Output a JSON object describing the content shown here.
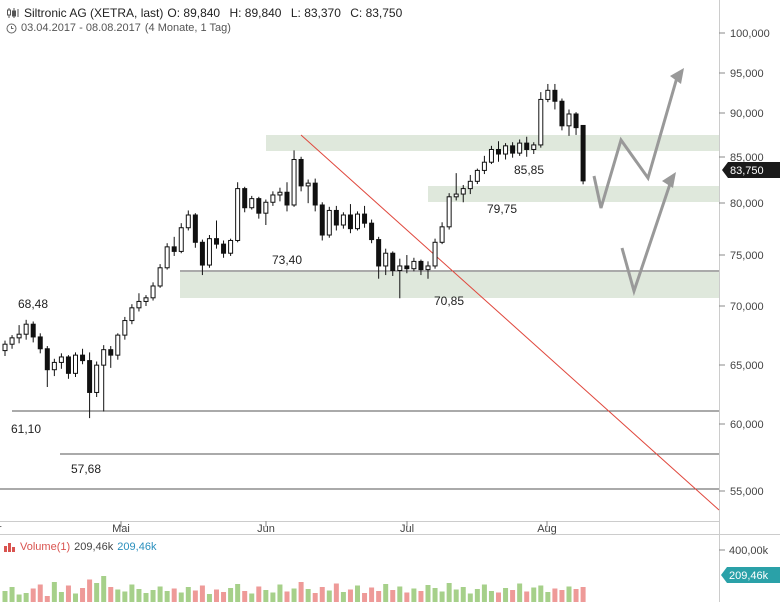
{
  "header": {
    "title": "Siltronic AG (XETRA, last)",
    "ohlc": {
      "open_label": "O:",
      "open": "89,840",
      "high_label": "H:",
      "high": "89,840",
      "low_label": "L:",
      "low": "83,370",
      "close_label": "C:",
      "close": "83,750"
    },
    "date_range": "03.04.2017 - 08.08.2017",
    "period": "(4 Monate, 1 Tag)"
  },
  "price_badge": "83,750",
  "volume": {
    "label": "Volume(1)",
    "value1": "209,46k",
    "value2": "209,46k",
    "badge": "209,46k",
    "axis_label": "400,00k"
  },
  "chart_data": {
    "type": "candlestick",
    "y_axis": {
      "ticks": [
        "100,000",
        "95,000",
        "90,000",
        "85,000",
        "80,000",
        "75,000",
        "70,000",
        "65,000",
        "60,000",
        "55,000"
      ],
      "ylim": [
        52.5,
        102
      ]
    },
    "x_axis": {
      "ticks": [
        "Apr",
        "Mai",
        "Jun",
        "Jul",
        "Aug"
      ]
    },
    "annotations": [
      "68,48",
      "61,10",
      "57,68",
      "73,40",
      "70,85",
      "79,75",
      "85,85"
    ],
    "candles": [
      [
        65.1,
        66.2,
        64.5,
        65.8
      ],
      [
        65.8,
        66.8,
        65.3,
        66.5
      ],
      [
        66.5,
        67.9,
        65.9,
        66.9
      ],
      [
        66.9,
        68.48,
        66.3,
        68.0
      ],
      [
        68.0,
        68.3,
        66.0,
        66.6
      ],
      [
        66.6,
        67.0,
        64.8,
        65.3
      ],
      [
        65.3,
        65.6,
        61.1,
        63.0
      ],
      [
        63.0,
        64.2,
        62.3,
        63.8
      ],
      [
        63.8,
        64.8,
        63.1,
        64.4
      ],
      [
        64.4,
        64.6,
        62.0,
        62.6
      ],
      [
        62.6,
        64.9,
        62.2,
        64.6
      ],
      [
        64.6,
        65.3,
        63.6,
        64.0
      ],
      [
        64.0,
        64.9,
        57.68,
        60.5
      ],
      [
        60.5,
        63.9,
        60.0,
        63.5
      ],
      [
        63.5,
        65.7,
        58.4,
        65.2
      ],
      [
        65.2,
        65.6,
        63.2,
        64.6
      ],
      [
        64.6,
        67.0,
        64.1,
        66.8
      ],
      [
        66.8,
        68.8,
        66.3,
        68.4
      ],
      [
        68.4,
        70.2,
        68.0,
        69.8
      ],
      [
        69.8,
        71.4,
        69.4,
        70.5
      ],
      [
        70.5,
        71.2,
        70.0,
        70.9
      ],
      [
        70.9,
        72.6,
        70.6,
        72.2
      ],
      [
        72.2,
        74.6,
        72.0,
        74.2
      ],
      [
        74.2,
        76.9,
        74.0,
        76.5
      ],
      [
        76.5,
        77.6,
        75.5,
        76.0
      ],
      [
        76.0,
        79.1,
        75.8,
        78.6
      ],
      [
        78.6,
        80.5,
        78.3,
        80.0
      ],
      [
        80.0,
        80.2,
        76.4,
        77.0
      ],
      [
        77.0,
        77.3,
        73.4,
        74.5
      ],
      [
        74.5,
        77.8,
        74.2,
        77.4
      ],
      [
        77.4,
        79.4,
        76.3,
        76.8
      ],
      [
        76.8,
        77.2,
        75.3,
        75.8
      ],
      [
        75.8,
        77.4,
        75.5,
        77.2
      ],
      [
        77.2,
        83.6,
        77.0,
        82.9
      ],
      [
        82.9,
        83.1,
        80.3,
        80.8
      ],
      [
        80.8,
        82.1,
        80.6,
        81.8
      ],
      [
        81.8,
        82.0,
        79.6,
        80.2
      ],
      [
        80.2,
        81.7,
        78.9,
        81.4
      ],
      [
        81.4,
        82.6,
        81.0,
        82.2
      ],
      [
        82.2,
        83.0,
        81.5,
        82.5
      ],
      [
        82.5,
        83.6,
        80.4,
        81.1
      ],
      [
        81.1,
        87.1,
        80.9,
        86.1
      ],
      [
        86.1,
        86.4,
        82.6,
        83.2
      ],
      [
        83.2,
        83.9,
        81.3,
        83.5
      ],
      [
        83.5,
        84.0,
        80.4,
        81.1
      ],
      [
        81.1,
        81.4,
        77.2,
        77.8
      ],
      [
        77.8,
        80.9,
        77.5,
        80.5
      ],
      [
        80.5,
        81.0,
        78.3,
        78.9
      ],
      [
        78.9,
        80.3,
        78.5,
        80.0
      ],
      [
        80.0,
        81.2,
        78.0,
        78.5
      ],
      [
        78.5,
        80.4,
        78.3,
        80.1
      ],
      [
        80.1,
        81.0,
        78.6,
        79.1
      ],
      [
        79.1,
        79.5,
        76.9,
        77.3
      ],
      [
        77.3,
        77.6,
        73.0,
        74.4
      ],
      [
        74.4,
        76.3,
        73.4,
        75.8
      ],
      [
        75.8,
        76.0,
        73.3,
        73.9
      ],
      [
        73.9,
        75.2,
        70.85,
        74.4
      ],
      [
        74.4,
        75.6,
        73.6,
        74.1
      ],
      [
        74.1,
        75.3,
        73.8,
        74.9
      ],
      [
        74.9,
        75.1,
        73.4,
        74.0
      ],
      [
        74.0,
        74.9,
        73.0,
        74.4
      ],
      [
        74.4,
        77.4,
        74.1,
        77.0
      ],
      [
        77.0,
        79.2,
        76.8,
        78.7
      ],
      [
        78.7,
        82.4,
        78.4,
        82.0
      ],
      [
        82.0,
        84.6,
        81.6,
        82.3
      ],
      [
        82.3,
        83.3,
        81.4,
        82.9
      ],
      [
        82.9,
        84.4,
        82.3,
        83.7
      ],
      [
        83.7,
        85.1,
        83.4,
        84.9
      ],
      [
        84.9,
        86.5,
        84.5,
        85.8
      ],
      [
        85.8,
        87.6,
        85.6,
        87.2
      ],
      [
        87.2,
        88.1,
        85.85,
        86.7
      ],
      [
        86.7,
        87.9,
        86.1,
        87.6
      ],
      [
        87.6,
        88.0,
        86.3,
        86.8
      ],
      [
        86.8,
        88.3,
        86.5,
        87.9
      ],
      [
        87.9,
        88.6,
        86.4,
        87.2
      ],
      [
        87.2,
        88.0,
        86.7,
        87.7
      ],
      [
        87.7,
        93.5,
        87.4,
        92.7
      ],
      [
        92.7,
        94.4,
        92.4,
        93.7
      ],
      [
        93.7,
        94.4,
        91.6,
        92.5
      ],
      [
        92.5,
        92.8,
        89.3,
        89.8
      ],
      [
        89.8,
        91.6,
        88.7,
        91.1
      ],
      [
        91.1,
        91.3,
        88.8,
        89.6
      ],
      [
        89.84,
        89.84,
        83.37,
        83.75
      ]
    ],
    "volume_bars": [
      22,
      30,
      15,
      18,
      27,
      35,
      12,
      40,
      20,
      33,
      17,
      28,
      45,
      38,
      52,
      30,
      25,
      21,
      35,
      26,
      18,
      24,
      31,
      22,
      27,
      19,
      30,
      23,
      33,
      16,
      25,
      20,
      28,
      36,
      22,
      17,
      31,
      24,
      19,
      35,
      21,
      27,
      40,
      26,
      18,
      30,
      23,
      37,
      20,
      25,
      33,
      18,
      29,
      22,
      36,
      24,
      31,
      19,
      27,
      22,
      34,
      28,
      21,
      38,
      25,
      30,
      17,
      26,
      35,
      22,
      19,
      28,
      24,
      37,
      21,
      29,
      33,
      20,
      27,
      24,
      31,
      26,
      30
    ]
  }
}
